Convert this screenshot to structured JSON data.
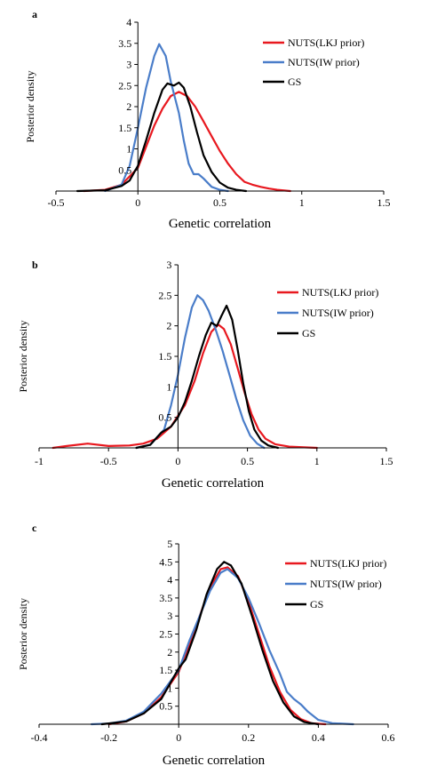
{
  "chart_data": [
    {
      "panel": "a",
      "type": "line",
      "xlabel": "Genetic correlation",
      "ylabel": "Posterior density",
      "xlim": [
        -0.5,
        1.5
      ],
      "ylim": [
        0,
        4
      ],
      "xticks": [
        -0.5,
        0,
        0.5,
        1,
        1.5
      ],
      "yticks": [
        0.5,
        1,
        1.5,
        2,
        2.5,
        3,
        3.5,
        4
      ],
      "grid": false,
      "legend_position": "top-right",
      "series": [
        {
          "name": "NUTS(LKJ prior)",
          "color": "#e8181f",
          "points": [
            [
              -0.33,
              0
            ],
            [
              -0.2,
              0.03
            ],
            [
              -0.1,
              0.15
            ],
            [
              0,
              0.55
            ],
            [
              0.05,
              1.05
            ],
            [
              0.1,
              1.55
            ],
            [
              0.15,
              1.95
            ],
            [
              0.2,
              2.25
            ],
            [
              0.25,
              2.35
            ],
            [
              0.3,
              2.25
            ],
            [
              0.35,
              2.0
            ],
            [
              0.4,
              1.65
            ],
            [
              0.45,
              1.3
            ],
            [
              0.5,
              0.95
            ],
            [
              0.55,
              0.65
            ],
            [
              0.6,
              0.4
            ],
            [
              0.65,
              0.22
            ],
            [
              0.7,
              0.15
            ],
            [
              0.75,
              0.1
            ],
            [
              0.8,
              0.06
            ],
            [
              0.85,
              0.03
            ],
            [
              0.93,
              0
            ]
          ]
        },
        {
          "name": "NUTS(IW prior)",
          "color": "#4a7dc9",
          "points": [
            [
              -0.2,
              0
            ],
            [
              -0.1,
              0.15
            ],
            [
              -0.05,
              0.6
            ],
            [
              0,
              1.5
            ],
            [
              0.05,
              2.45
            ],
            [
              0.1,
              3.2
            ],
            [
              0.13,
              3.48
            ],
            [
              0.17,
              3.2
            ],
            [
              0.2,
              2.6
            ],
            [
              0.25,
              1.85
            ],
            [
              0.28,
              1.2
            ],
            [
              0.31,
              0.65
            ],
            [
              0.34,
              0.4
            ],
            [
              0.37,
              0.4
            ],
            [
              0.4,
              0.3
            ],
            [
              0.45,
              0.1
            ],
            [
              0.5,
              0.03
            ],
            [
              0.55,
              0
            ]
          ]
        },
        {
          "name": "GS",
          "color": "#000000",
          "points": [
            [
              -0.37,
              0
            ],
            [
              -0.2,
              0.02
            ],
            [
              -0.1,
              0.12
            ],
            [
              -0.05,
              0.25
            ],
            [
              0,
              0.6
            ],
            [
              0.05,
              1.2
            ],
            [
              0.1,
              1.85
            ],
            [
              0.15,
              2.4
            ],
            [
              0.18,
              2.55
            ],
            [
              0.22,
              2.5
            ],
            [
              0.25,
              2.57
            ],
            [
              0.28,
              2.45
            ],
            [
              0.32,
              2.0
            ],
            [
              0.36,
              1.4
            ],
            [
              0.4,
              0.85
            ],
            [
              0.45,
              0.45
            ],
            [
              0.5,
              0.2
            ],
            [
              0.55,
              0.08
            ],
            [
              0.6,
              0.03
            ],
            [
              0.66,
              0
            ]
          ]
        }
      ]
    },
    {
      "panel": "b",
      "type": "line",
      "xlabel": "Genetic correlation",
      "ylabel": "Posterior density",
      "xlim": [
        -1,
        1.5
      ],
      "ylim": [
        0,
        3
      ],
      "xticks": [
        -1,
        -0.5,
        0,
        0.5,
        1,
        1.5
      ],
      "yticks": [
        0.5,
        1,
        1.5,
        2,
        2.5,
        3
      ],
      "grid": false,
      "legend_position": "right",
      "series": [
        {
          "name": "NUTS(LKJ prior)",
          "color": "#e8181f",
          "points": [
            [
              -0.9,
              0
            ],
            [
              -0.8,
              0.03
            ],
            [
              -0.65,
              0.07
            ],
            [
              -0.5,
              0.03
            ],
            [
              -0.35,
              0.04
            ],
            [
              -0.25,
              0.07
            ],
            [
              -0.15,
              0.15
            ],
            [
              -0.05,
              0.35
            ],
            [
              0.05,
              0.7
            ],
            [
              0.12,
              1.1
            ],
            [
              0.18,
              1.55
            ],
            [
              0.24,
              1.9
            ],
            [
              0.29,
              2.02
            ],
            [
              0.33,
              1.95
            ],
            [
              0.38,
              1.7
            ],
            [
              0.43,
              1.3
            ],
            [
              0.48,
              0.9
            ],
            [
              0.53,
              0.55
            ],
            [
              0.58,
              0.3
            ],
            [
              0.63,
              0.15
            ],
            [
              0.7,
              0.06
            ],
            [
              0.8,
              0.02
            ],
            [
              1.0,
              0
            ]
          ]
        },
        {
          "name": "NUTS(IW prior)",
          "color": "#4a7dc9",
          "points": [
            [
              -0.3,
              0
            ],
            [
              -0.2,
              0.05
            ],
            [
              -0.1,
              0.3
            ],
            [
              -0.05,
              0.7
            ],
            [
              0,
              1.2
            ],
            [
              0.05,
              1.8
            ],
            [
              0.1,
              2.3
            ],
            [
              0.14,
              2.5
            ],
            [
              0.18,
              2.42
            ],
            [
              0.22,
              2.25
            ],
            [
              0.27,
              1.95
            ],
            [
              0.32,
              1.6
            ],
            [
              0.37,
              1.2
            ],
            [
              0.42,
              0.8
            ],
            [
              0.47,
              0.45
            ],
            [
              0.52,
              0.2
            ],
            [
              0.57,
              0.07
            ],
            [
              0.62,
              0
            ]
          ]
        },
        {
          "name": "GS",
          "color": "#000000",
          "points": [
            [
              -0.3,
              0
            ],
            [
              -0.2,
              0.05
            ],
            [
              -0.12,
              0.25
            ],
            [
              -0.05,
              0.35
            ],
            [
              0,
              0.5
            ],
            [
              0.05,
              0.75
            ],
            [
              0.1,
              1.1
            ],
            [
              0.15,
              1.5
            ],
            [
              0.2,
              1.85
            ],
            [
              0.24,
              2.05
            ],
            [
              0.28,
              2.0
            ],
            [
              0.31,
              2.15
            ],
            [
              0.35,
              2.33
            ],
            [
              0.39,
              2.1
            ],
            [
              0.43,
              1.6
            ],
            [
              0.47,
              1.05
            ],
            [
              0.51,
              0.6
            ],
            [
              0.55,
              0.3
            ],
            [
              0.6,
              0.12
            ],
            [
              0.65,
              0.04
            ],
            [
              0.72,
              0
            ]
          ]
        }
      ]
    },
    {
      "panel": "c",
      "type": "line",
      "xlabel": "Genetic correlation",
      "ylabel": "Posterior density",
      "xlim": [
        -0.4,
        0.6
      ],
      "ylim": [
        0,
        5
      ],
      "xticks": [
        -0.4,
        -0.2,
        0,
        0.2,
        0.4,
        0.6
      ],
      "yticks": [
        0.5,
        1,
        1.5,
        2,
        2.5,
        3,
        3.5,
        4,
        4.5,
        5
      ],
      "grid": false,
      "legend_position": "top-right",
      "series": [
        {
          "name": "NUTS(LKJ prior)",
          "color": "#e8181f",
          "points": [
            [
              -0.2,
              0
            ],
            [
              -0.15,
              0.08
            ],
            [
              -0.1,
              0.3
            ],
            [
              -0.05,
              0.75
            ],
            [
              0,
              1.45
            ],
            [
              0.03,
              2.2
            ],
            [
              0.06,
              3.0
            ],
            [
              0.09,
              3.8
            ],
            [
              0.12,
              4.3
            ],
            [
              0.14,
              4.35
            ],
            [
              0.17,
              4.1
            ],
            [
              0.2,
              3.4
            ],
            [
              0.23,
              2.5
            ],
            [
              0.26,
              1.6
            ],
            [
              0.29,
              0.9
            ],
            [
              0.32,
              0.4
            ],
            [
              0.35,
              0.14
            ],
            [
              0.38,
              0.03
            ],
            [
              0.42,
              0
            ]
          ]
        },
        {
          "name": "NUTS(IW prior)",
          "color": "#4a7dc9",
          "points": [
            [
              -0.25,
              0
            ],
            [
              -0.2,
              0.02
            ],
            [
              -0.15,
              0.1
            ],
            [
              -0.1,
              0.35
            ],
            [
              -0.05,
              0.85
            ],
            [
              0,
              1.5
            ],
            [
              0.03,
              2.3
            ],
            [
              0.06,
              3.0
            ],
            [
              0.09,
              3.7
            ],
            [
              0.12,
              4.2
            ],
            [
              0.14,
              4.3
            ],
            [
              0.17,
              4.05
            ],
            [
              0.2,
              3.5
            ],
            [
              0.23,
              2.8
            ],
            [
              0.26,
              2.05
            ],
            [
              0.29,
              1.4
            ],
            [
              0.31,
              0.9
            ],
            [
              0.33,
              0.7
            ],
            [
              0.35,
              0.55
            ],
            [
              0.37,
              0.35
            ],
            [
              0.4,
              0.12
            ],
            [
              0.44,
              0.03
            ],
            [
              0.5,
              0
            ]
          ]
        },
        {
          "name": "GS",
          "color": "#000000",
          "points": [
            [
              -0.22,
              0
            ],
            [
              -0.15,
              0.08
            ],
            [
              -0.1,
              0.3
            ],
            [
              -0.05,
              0.7
            ],
            [
              0,
              1.55
            ],
            [
              0.02,
              1.8
            ],
            [
              0.05,
              2.6
            ],
            [
              0.08,
              3.6
            ],
            [
              0.11,
              4.3
            ],
            [
              0.13,
              4.5
            ],
            [
              0.15,
              4.4
            ],
            [
              0.18,
              3.9
            ],
            [
              0.21,
              3.0
            ],
            [
              0.24,
              2.05
            ],
            [
              0.27,
              1.2
            ],
            [
              0.3,
              0.6
            ],
            [
              0.33,
              0.22
            ],
            [
              0.36,
              0.06
            ],
            [
              0.4,
              0
            ]
          ]
        }
      ]
    }
  ]
}
